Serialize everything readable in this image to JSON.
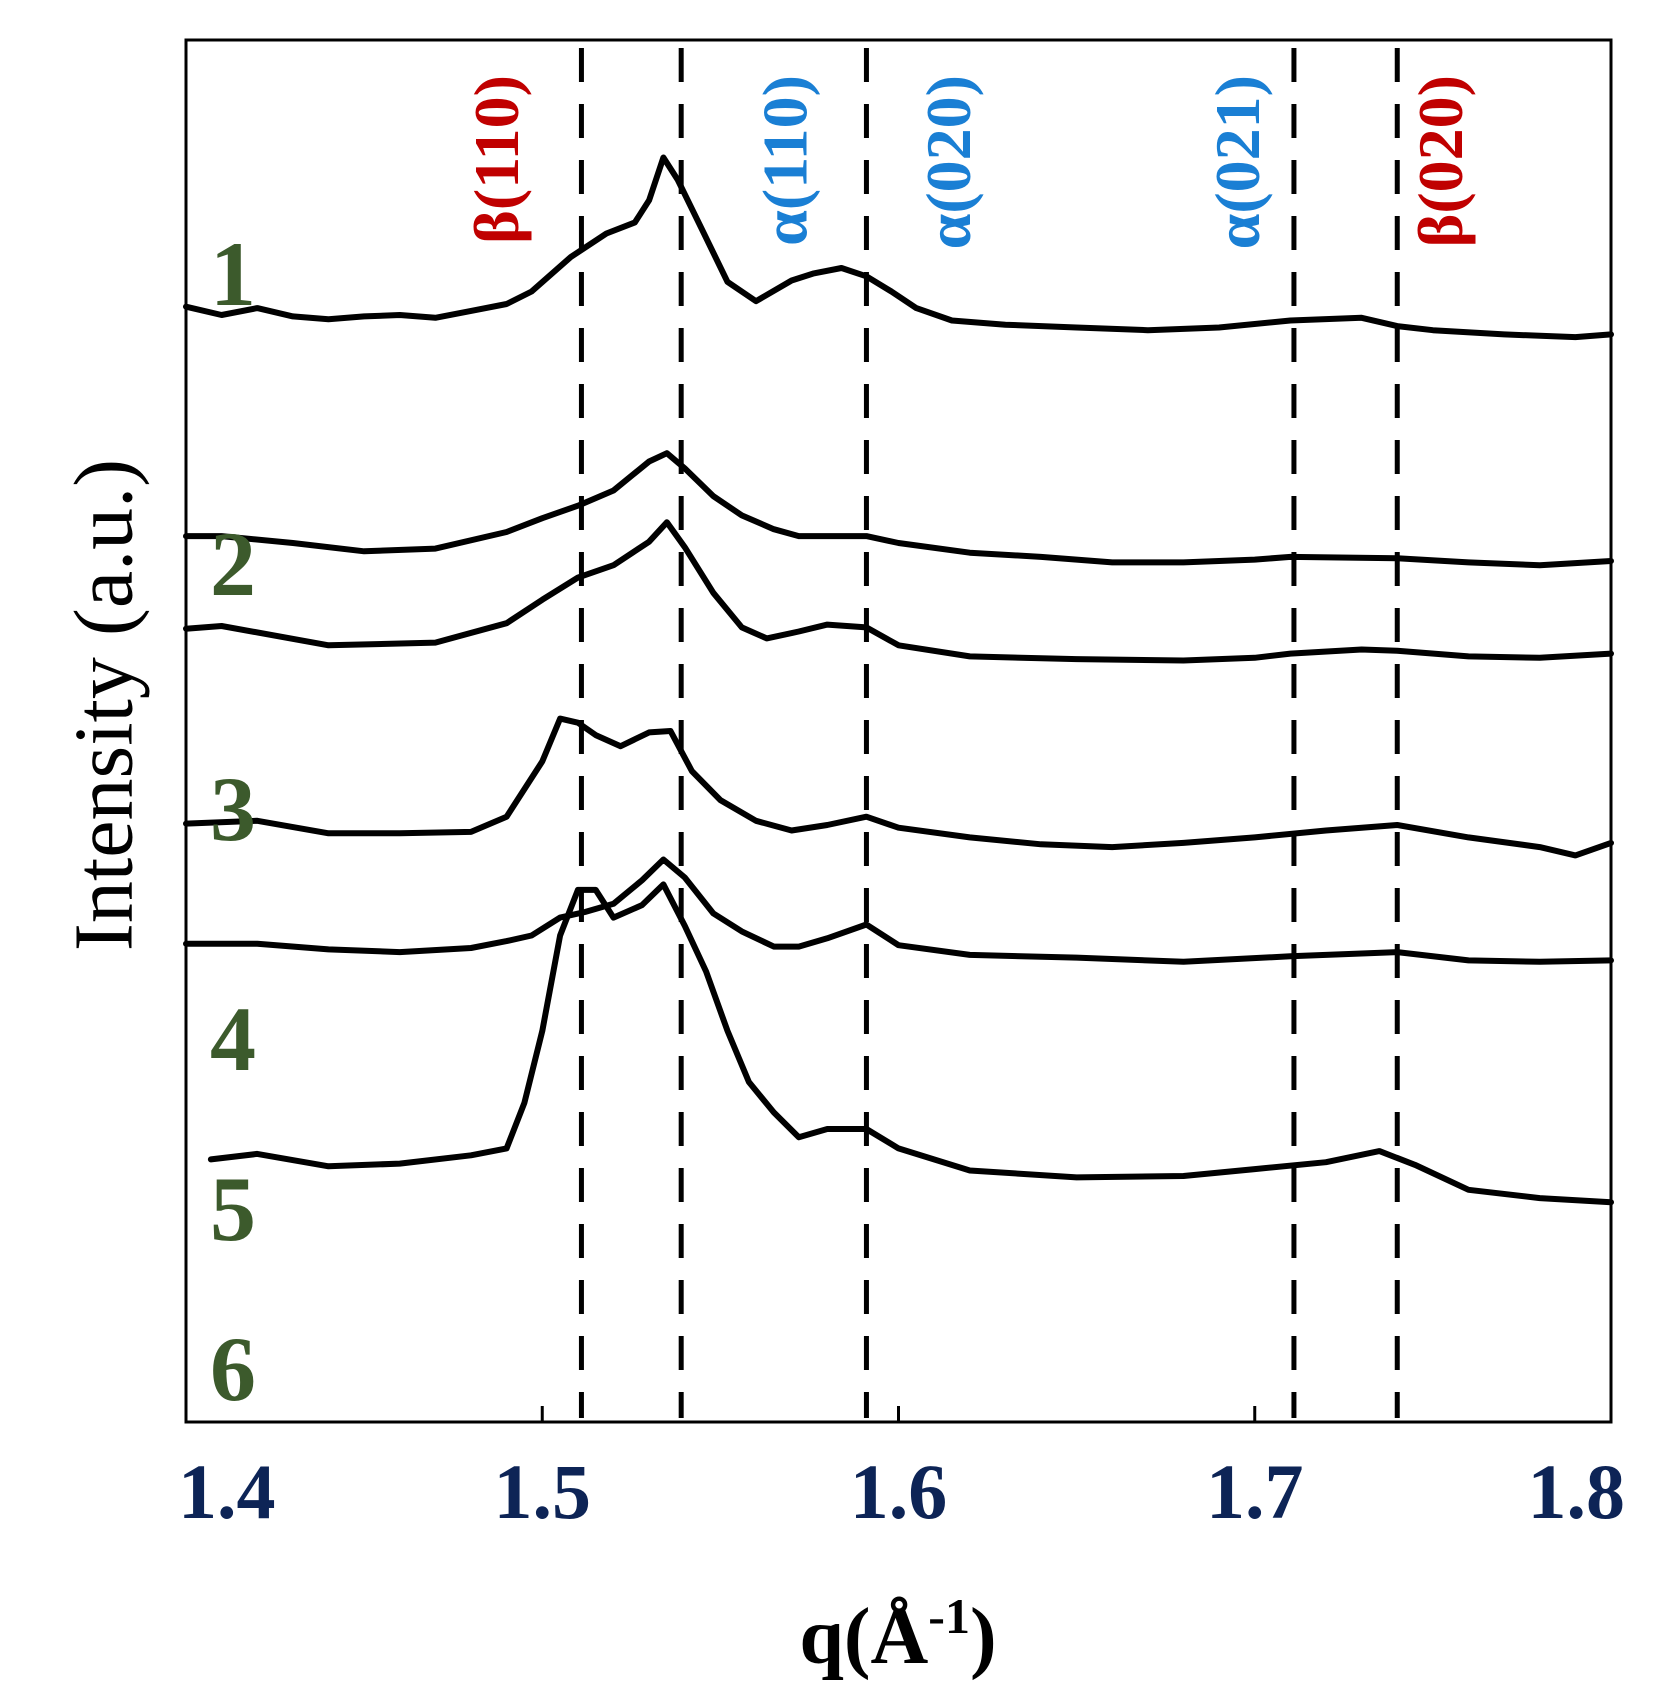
{
  "chart_data": {
    "type": "line",
    "title": "",
    "xlabel_main": "q(Å",
    "xlabel_sup": "-1",
    "xlabel_close": ")",
    "ylabel": "Intensity (a.u.)",
    "xlim": [
      1.4,
      1.8
    ],
    "ylim": [
      0,
      100
    ],
    "x_ticks": [
      "1.4",
      "1.5",
      "1.6",
      "1.7",
      "1.8"
    ],
    "x_tick_values": [
      1.4,
      1.5,
      1.6,
      1.7,
      1.8
    ],
    "grid": false,
    "colors": {
      "axis": "#000000",
      "tick_label": "#0d2456",
      "series_number": "#3c5a2c",
      "alpha_peak": "#1a7fd4",
      "beta_peak": "#c00000"
    },
    "reference_lines": [
      {
        "label": "β(110)",
        "x": 1.511,
        "phase": "beta"
      },
      {
        "label": "α(110)",
        "x": 1.539,
        "phase": "alpha"
      },
      {
        "label": "α(020)",
        "x": 1.591,
        "phase": "alpha"
      },
      {
        "label": "α(021)",
        "x": 1.711,
        "phase": "alpha"
      },
      {
        "label": "β(020)",
        "x": 1.74,
        "phase": "beta"
      }
    ],
    "peak_labels": [
      {
        "text": "β(110)",
        "x": 1.489,
        "phase": "beta"
      },
      {
        "text": "α(110)",
        "x": 1.57,
        "phase": "alpha"
      },
      {
        "text": "α(020)",
        "x": 1.616,
        "phase": "alpha"
      },
      {
        "text": "α(021)",
        "x": 1.697,
        "phase": "alpha"
      },
      {
        "text": "β(020)",
        "x": 1.754,
        "phase": "beta"
      }
    ],
    "series_labels": [
      "1",
      "2",
      "3",
      "4",
      "5",
      "6"
    ],
    "series": [
      {
        "name": "1",
        "x": [
          1.4,
          1.41,
          1.42,
          1.43,
          1.44,
          1.45,
          1.46,
          1.47,
          1.48,
          1.49,
          1.497,
          1.508,
          1.518,
          1.526,
          1.53,
          1.534,
          1.538,
          1.545,
          1.552,
          1.56,
          1.57,
          1.576,
          1.584,
          1.591,
          1.598,
          1.605,
          1.615,
          1.63,
          1.65,
          1.67,
          1.69,
          1.71,
          1.73,
          1.74,
          1.75,
          1.77,
          1.79,
          1.8
        ],
        "y": [
          80.7,
          80.1,
          80.6,
          80.0,
          79.8,
          80.0,
          80.1,
          79.9,
          80.4,
          80.9,
          81.8,
          84.3,
          86.0,
          86.8,
          88.4,
          91.5,
          89.9,
          86.2,
          82.5,
          81.1,
          82.6,
          83.1,
          83.5,
          82.9,
          81.8,
          80.6,
          79.7,
          79.4,
          79.2,
          79.0,
          79.2,
          79.7,
          79.9,
          79.3,
          79.0,
          78.7,
          78.5,
          78.7
        ]
      },
      {
        "name": "2",
        "x": [
          1.4,
          1.41,
          1.43,
          1.45,
          1.47,
          1.49,
          1.5,
          1.51,
          1.52,
          1.53,
          1.535,
          1.54,
          1.548,
          1.556,
          1.565,
          1.572,
          1.58,
          1.591,
          1.6,
          1.62,
          1.64,
          1.66,
          1.68,
          1.7,
          1.71,
          1.74,
          1.76,
          1.78,
          1.8
        ],
        "y": [
          64.1,
          64.1,
          63.6,
          63.0,
          63.2,
          64.4,
          65.4,
          66.3,
          67.4,
          69.5,
          70.1,
          69.0,
          67.0,
          65.6,
          64.6,
          64.1,
          64.1,
          64.1,
          63.6,
          62.9,
          62.6,
          62.2,
          62.2,
          62.4,
          62.6,
          62.5,
          62.2,
          62.0,
          62.3
        ]
      },
      {
        "name": "3",
        "x": [
          1.4,
          1.41,
          1.44,
          1.47,
          1.49,
          1.5,
          1.51,
          1.52,
          1.53,
          1.535,
          1.54,
          1.548,
          1.556,
          1.563,
          1.572,
          1.58,
          1.591,
          1.6,
          1.62,
          1.65,
          1.68,
          1.7,
          1.71,
          1.73,
          1.74,
          1.76,
          1.78,
          1.8
        ],
        "y": [
          57.4,
          57.6,
          56.2,
          56.4,
          57.8,
          59.5,
          61.1,
          62.0,
          63.7,
          65.1,
          63.3,
          60.0,
          57.5,
          56.7,
          57.2,
          57.7,
          57.5,
          56.2,
          55.4,
          55.2,
          55.1,
          55.3,
          55.6,
          55.9,
          55.8,
          55.4,
          55.3,
          55.6
        ]
      },
      {
        "name": "4",
        "x": [
          1.4,
          1.42,
          1.44,
          1.46,
          1.48,
          1.49,
          1.5,
          1.505,
          1.51,
          1.515,
          1.522,
          1.53,
          1.536,
          1.542,
          1.55,
          1.56,
          1.57,
          1.58,
          1.591,
          1.6,
          1.62,
          1.64,
          1.66,
          1.68,
          1.7,
          1.72,
          1.74,
          1.76,
          1.78,
          1.79,
          1.8
        ],
        "y": [
          43.3,
          43.5,
          42.6,
          42.6,
          42.7,
          43.8,
          47.8,
          50.9,
          50.6,
          49.7,
          48.9,
          49.9,
          50.0,
          47.1,
          45.0,
          43.5,
          42.8,
          43.2,
          43.8,
          43.0,
          42.3,
          41.8,
          41.6,
          41.9,
          42.3,
          42.8,
          43.2,
          42.3,
          41.6,
          41.0,
          41.9
        ]
      },
      {
        "name": "5",
        "x": [
          1.4,
          1.42,
          1.44,
          1.46,
          1.48,
          1.49,
          1.497,
          1.505,
          1.512,
          1.52,
          1.528,
          1.534,
          1.54,
          1.548,
          1.556,
          1.565,
          1.572,
          1.58,
          1.591,
          1.6,
          1.62,
          1.65,
          1.68,
          1.71,
          1.74,
          1.76,
          1.78,
          1.8
        ],
        "y": [
          34.6,
          34.6,
          34.2,
          34.0,
          34.3,
          34.8,
          35.2,
          36.5,
          36.9,
          37.5,
          39.2,
          40.7,
          39.4,
          36.8,
          35.5,
          34.4,
          34.4,
          35.0,
          36.0,
          34.5,
          33.8,
          33.6,
          33.3,
          33.7,
          34.0,
          33.4,
          33.3,
          33.4
        ]
      },
      {
        "name": "6",
        "x": [
          1.407,
          1.42,
          1.44,
          1.46,
          1.48,
          1.49,
          1.495,
          1.5,
          1.505,
          1.51,
          1.515,
          1.52,
          1.528,
          1.534,
          1.54,
          1.546,
          1.552,
          1.558,
          1.565,
          1.572,
          1.58,
          1.591,
          1.6,
          1.62,
          1.65,
          1.68,
          1.7,
          1.72,
          1.735,
          1.745,
          1.76,
          1.78,
          1.8
        ],
        "y": [
          19.0,
          19.4,
          18.5,
          18.7,
          19.3,
          19.8,
          23.1,
          28.3,
          35.2,
          38.5,
          38.5,
          36.5,
          37.4,
          38.9,
          35.9,
          32.6,
          28.3,
          24.6,
          22.4,
          20.6,
          21.2,
          21.2,
          19.8,
          18.2,
          17.7,
          17.8,
          18.3,
          18.8,
          19.6,
          18.6,
          16.8,
          16.2,
          15.9
        ]
      }
    ]
  }
}
